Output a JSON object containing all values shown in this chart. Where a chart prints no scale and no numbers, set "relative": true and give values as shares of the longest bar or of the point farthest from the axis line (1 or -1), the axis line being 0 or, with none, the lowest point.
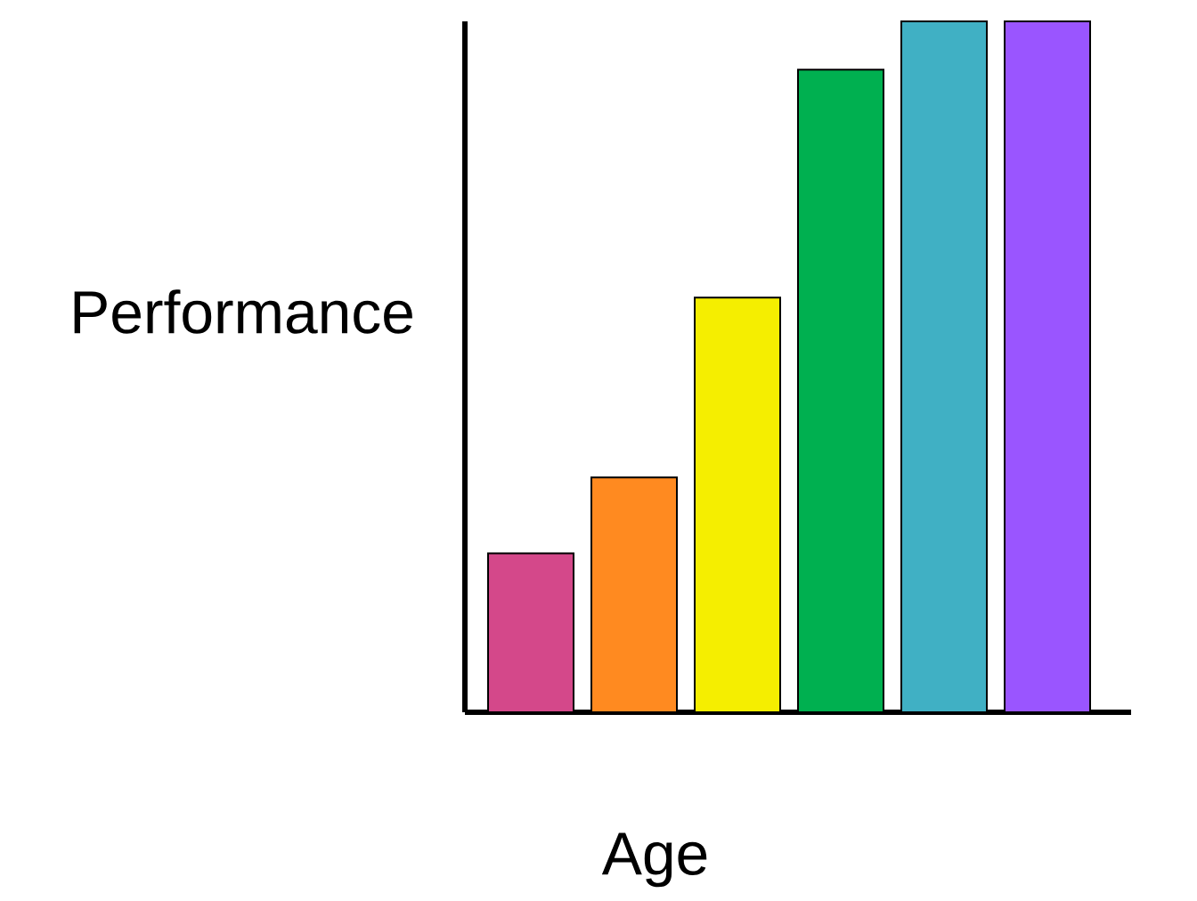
{
  "chart_data": {
    "type": "bar",
    "relative": true,
    "xlabel": "Age",
    "ylabel": "Performance",
    "categories": [
      null,
      null,
      null,
      null,
      null,
      null
    ],
    "values": [
      0.23,
      0.34,
      0.6,
      0.93,
      1,
      1
    ],
    "colors": [
      "#d4488a",
      "#ff8a20",
      "#f5ee00",
      "#00b050",
      "#40b0c4",
      "#9a55ff"
    ]
  }
}
